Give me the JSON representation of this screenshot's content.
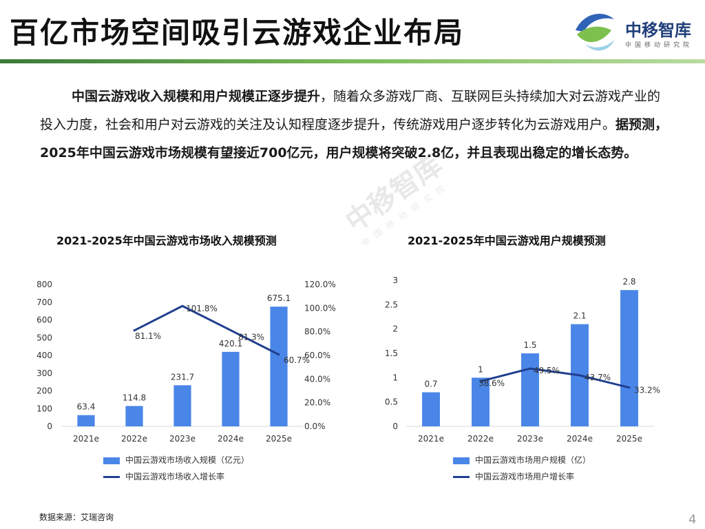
{
  "title": "百亿市场空间吸引云游戏企业布局",
  "logo": {
    "name": "中移智库",
    "subtitle": "中国移动研究院"
  },
  "intro": {
    "bold1": "中国云游戏收入规模和用户规模正逐步提升",
    "text1": "，随着众多游戏厂商、互联网巨头持续加大对云游戏产业的投入力度，社会和用户对云游戏的关注及认知程度逐步提升，传统游戏用户逐步转化为云游戏用户。",
    "bold2": "据预测，  2025年中国云游戏市场规模有望接近700亿元，用户规模将突破2.8亿，并且表现出稳定的增长态势。"
  },
  "colors": {
    "bar": "#4a86e8",
    "line": "#1f3f8f",
    "header_rule": "#5aa04a"
  },
  "chart_data": [
    {
      "type": "bar",
      "title": "2021-2025年中国云游戏市场收入规模预测",
      "categories": [
        "2021e",
        "2022e",
        "2023e",
        "2024e",
        "2025e"
      ],
      "series": [
        {
          "name": "中国云游戏市场收入规模（亿元）",
          "type": "bar",
          "axis": "left",
          "values": [
            63.4,
            114.8,
            231.7,
            420.1,
            675.1
          ],
          "labels": [
            "63.4",
            "114.8",
            "231.7",
            "420.1",
            "675.1"
          ]
        },
        {
          "name": "中国云游戏市场收入增长率",
          "type": "line",
          "axis": "right",
          "values": [
            null,
            81.1,
            101.8,
            81.3,
            60.7
          ],
          "labels": [
            "",
            "81.1%",
            "101.8%",
            "81.3%",
            "60.7%"
          ]
        }
      ],
      "ylim": [
        0,
        800
      ],
      "y_ticks": [
        "0",
        "100",
        "200",
        "300",
        "400",
        "500",
        "600",
        "700",
        "800"
      ],
      "y2lim": [
        0,
        120
      ],
      "y2_ticks": [
        "0.0%",
        "20.0%",
        "40.0%",
        "60.0%",
        "80.0%",
        "100.0%",
        "120.0%"
      ],
      "legend": "bottom",
      "grid": false
    },
    {
      "type": "bar",
      "title": "2021-2025年中国云游戏用户规模预测",
      "categories": [
        "2021e",
        "2022e",
        "2023e",
        "2024e",
        "2025e"
      ],
      "series": [
        {
          "name": "中国云游戏市场用户规模（亿）",
          "type": "bar",
          "axis": "left",
          "values": [
            0.7,
            1,
            1.5,
            2.1,
            2.8
          ],
          "labels": [
            "0.7",
            "1",
            "1.5",
            "2.1",
            "2.8"
          ]
        },
        {
          "name": "中国云游戏市场用户增长率",
          "type": "line",
          "axis": "left-scaled",
          "values": [
            null,
            38.6,
            49.5,
            43.7,
            33.2
          ],
          "labels": [
            "",
            "38.6%",
            "49.5%",
            "43.7%",
            "33.2%"
          ]
        }
      ],
      "ylim": [
        0,
        3
      ],
      "y_ticks": [
        "0",
        "0.5",
        "1",
        "1.5",
        "2",
        "2.5",
        "3"
      ],
      "legend": "bottom",
      "grid": false
    }
  ],
  "source": "数据来源：艾瑞咨询",
  "page_number": "4"
}
